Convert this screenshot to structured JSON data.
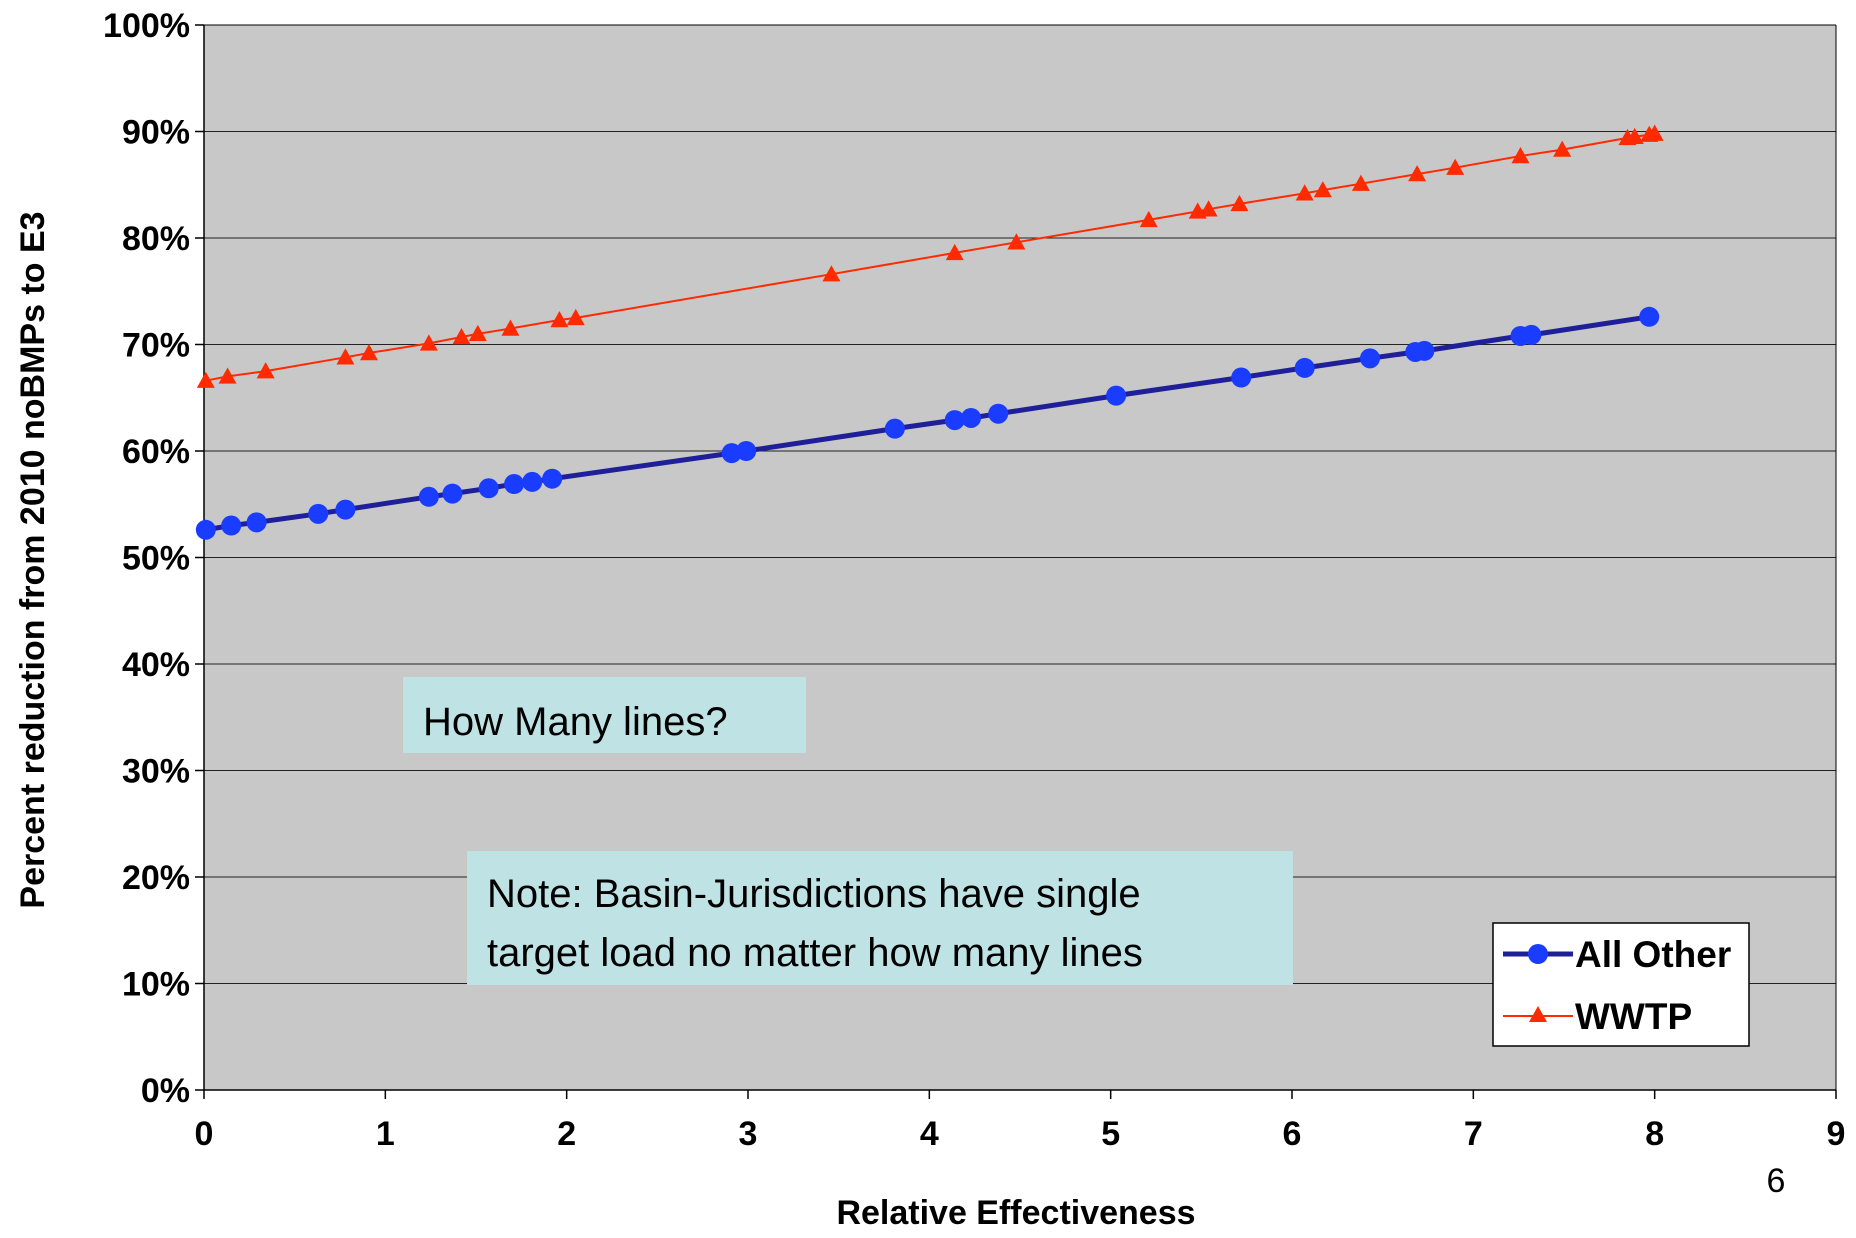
{
  "chart_data": {
    "type": "line",
    "xlabel": "Relative Effectiveness",
    "ylabel": "Percent reduction from 2010 noBMPs to E3",
    "xlim": [
      0,
      9
    ],
    "ylim": [
      0,
      100
    ],
    "x_ticks": [
      "0",
      "1",
      "2",
      "3",
      "4",
      "5",
      "6",
      "7",
      "8",
      "9"
    ],
    "y_ticks": [
      "0%",
      "10%",
      "20%",
      "30%",
      "40%",
      "50%",
      "60%",
      "70%",
      "80%",
      "90%",
      "100%"
    ],
    "grid": "horizontal",
    "legend_position": "bottom-right",
    "series": [
      {
        "name": "All Other",
        "color": "#1f1f99",
        "marker": "circle",
        "marker_color": "#1a3cff",
        "points": [
          [
            0.01,
            52.6
          ],
          [
            0.15,
            53.0
          ],
          [
            0.29,
            53.3
          ],
          [
            0.63,
            54.1
          ],
          [
            0.78,
            54.5
          ],
          [
            1.24,
            55.7
          ],
          [
            1.37,
            56.0
          ],
          [
            1.57,
            56.5
          ],
          [
            1.71,
            56.9
          ],
          [
            1.81,
            57.1
          ],
          [
            1.92,
            57.4
          ],
          [
            2.91,
            59.8
          ],
          [
            2.99,
            60.0
          ],
          [
            3.81,
            62.1
          ],
          [
            4.14,
            62.9
          ],
          [
            4.23,
            63.1
          ],
          [
            4.38,
            63.5
          ],
          [
            5.03,
            65.2
          ],
          [
            5.72,
            66.9
          ],
          [
            6.07,
            67.8
          ],
          [
            6.43,
            68.7
          ],
          [
            6.68,
            69.3
          ],
          [
            6.73,
            69.4
          ],
          [
            7.26,
            70.8
          ],
          [
            7.32,
            70.9
          ],
          [
            7.97,
            72.6
          ]
        ]
      },
      {
        "name": "WWTP",
        "color": "#ff2a00",
        "marker": "triangle",
        "marker_color": "#ff2a00",
        "points": [
          [
            0.01,
            66.6
          ],
          [
            0.13,
            67.0
          ],
          [
            0.34,
            67.5
          ],
          [
            0.78,
            68.8
          ],
          [
            0.91,
            69.2
          ],
          [
            1.24,
            70.1
          ],
          [
            1.42,
            70.7
          ],
          [
            1.51,
            71.0
          ],
          [
            1.69,
            71.5
          ],
          [
            1.96,
            72.3
          ],
          [
            2.05,
            72.5
          ],
          [
            3.46,
            76.6
          ],
          [
            4.14,
            78.6
          ],
          [
            4.48,
            79.6
          ],
          [
            5.21,
            81.7
          ],
          [
            5.48,
            82.5
          ],
          [
            5.54,
            82.7
          ],
          [
            5.71,
            83.2
          ],
          [
            6.07,
            84.2
          ],
          [
            6.17,
            84.5
          ],
          [
            6.38,
            85.1
          ],
          [
            6.69,
            86.0
          ],
          [
            6.9,
            86.6
          ],
          [
            7.26,
            87.7
          ],
          [
            7.49,
            88.3
          ],
          [
            7.85,
            89.4
          ],
          [
            7.89,
            89.5
          ],
          [
            7.97,
            89.7
          ],
          [
            8.0,
            89.8
          ]
        ]
      }
    ],
    "annotations": [
      {
        "lines": [
          "How Many lines?"
        ]
      },
      {
        "lines": [
          "Note: Basin-Jurisdictions have single",
          "target load no matter how many lines"
        ]
      }
    ]
  },
  "slide_number": "6"
}
